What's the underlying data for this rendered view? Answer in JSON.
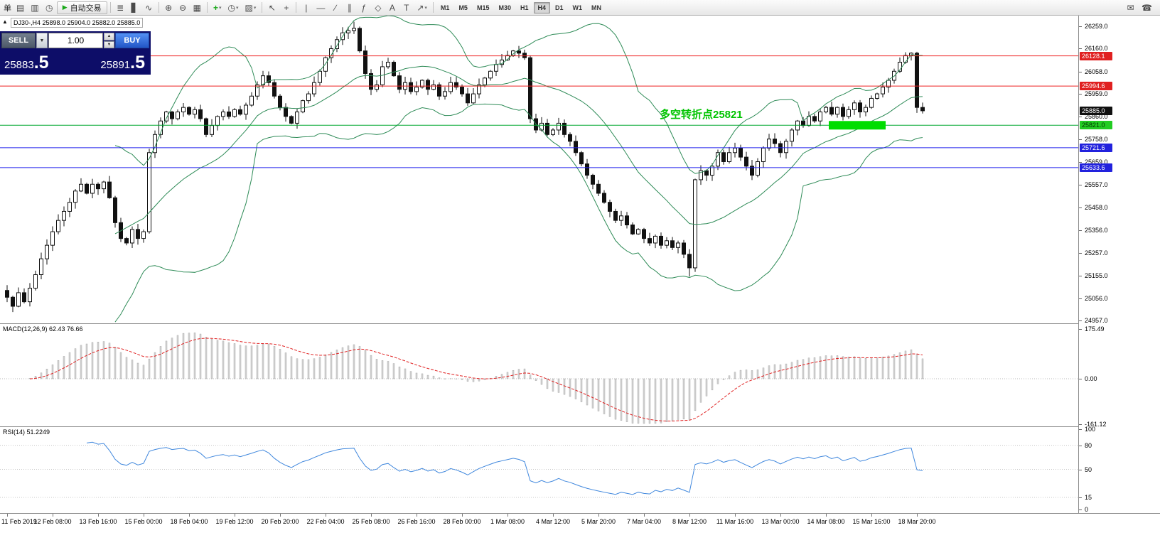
{
  "toolbar": {
    "left_text": "单",
    "autotrade_label": "自动交易",
    "timeframes": [
      "M1",
      "M5",
      "M15",
      "M30",
      "H1",
      "H4",
      "D1",
      "W1",
      "MN"
    ],
    "active_timeframe": "H4",
    "icons": {
      "files": "▤",
      "profile": "▥",
      "history": "◷",
      "play": "▶",
      "bars_chart": "≣",
      "candle_chart": "▋",
      "line_chart": "∿",
      "zoom_in": "⊕",
      "zoom_out": "⊖",
      "tile_windows": "▦",
      "add_indicator": "+",
      "periods": "◷",
      "templates": "▨",
      "cursor": "↖",
      "crosshair": "+",
      "vertical_line": "|",
      "horizontal_line": "—",
      "trendline": "∕",
      "channel": "∥",
      "fibonacci": "ƒ",
      "shapes": "◇",
      "text_tool": "A",
      "label_tool": "T",
      "arrows": "↗",
      "caret": "▾",
      "mail": "✉",
      "phone": "☎"
    }
  },
  "chart_header": {
    "symbol": "DJ30-,H4",
    "open": "25898.0",
    "high": "25904.0",
    "low": "25882.0",
    "close": "25885.0"
  },
  "trade_panel": {
    "sell_label": "SELL",
    "buy_label": "BUY",
    "volume": "1.00",
    "sell_price_main": "25883",
    "sell_price_pips": ".5",
    "buy_price_main": "25891",
    "buy_price_pips": ".5"
  },
  "annotation": {
    "text": "多空转折点25821",
    "color": "#00c400"
  },
  "price_axis": {
    "ticks": [
      "26259.0",
      "26160.0",
      "26058.0",
      "25959.0",
      "25860.0",
      "25758.0",
      "25659.0",
      "25557.0",
      "25458.0",
      "25356.0",
      "25257.0",
      "25155.0",
      "25056.0",
      "24957.0"
    ]
  },
  "hlines": [
    {
      "price": 26128.1,
      "label": "26128.1",
      "color": "#ee2222",
      "badge_bg": "#e02020",
      "badge_fg": "#ffffff",
      "line": true
    },
    {
      "price": 25994.6,
      "label": "25994.6",
      "color": "#ee2222",
      "badge_bg": "#e02020",
      "badge_fg": "#ffffff",
      "line": true
    },
    {
      "price": 25885.0,
      "label": "25885.0",
      "color": "#111111",
      "badge_bg": "#101010",
      "badge_fg": "#ffffff",
      "line": false
    },
    {
      "price": 25821.0,
      "label": "25821.0",
      "color": "#00a830",
      "badge_bg": "#22cc22",
      "badge_fg": "#003300",
      "line": true
    },
    {
      "price": 25721.6,
      "label": "25721.6",
      "color": "#2222ee",
      "badge_bg": "#2222dd",
      "badge_fg": "#ffffff",
      "line": true
    },
    {
      "price": 25633.6,
      "label": "25633.6",
      "color": "#2222ee",
      "badge_bg": "#2222dd",
      "badge_fg": "#ffffff",
      "line": true
    }
  ],
  "highlight_rect": {
    "from_index": 145,
    "to_index": 154,
    "price": 25821,
    "color": "#00dd00"
  },
  "macd": {
    "label": "MACD(12,26,9) 62.43 76.66",
    "scale_top": "175.49",
    "scale_zero": "0.00",
    "scale_bottom": "-161.12",
    "fast": 12,
    "slow": 26,
    "signal": 9
  },
  "rsi": {
    "label": "RSI(14) 51.2249",
    "period": 14,
    "levels": [
      "100",
      "80",
      "50",
      "15",
      "0"
    ],
    "dotted_levels": [
      80,
      50,
      15
    ]
  },
  "time_axis": {
    "labels": [
      {
        "index": 0,
        "text": "11 Feb 2019"
      },
      {
        "index": 8,
        "text": "12 Feb 08:00"
      },
      {
        "index": 16,
        "text": "13 Feb 16:00"
      },
      {
        "index": 24,
        "text": "15 Feb 00:00"
      },
      {
        "index": 32,
        "text": "18 Feb 04:00"
      },
      {
        "index": 40,
        "text": "19 Feb 12:00"
      },
      {
        "index": 48,
        "text": "20 Feb 20:00"
      },
      {
        "index": 56,
        "text": "22 Feb 04:00"
      },
      {
        "index": 64,
        "text": "25 Feb 08:00"
      },
      {
        "index": 72,
        "text": "26 Feb 16:00"
      },
      {
        "index": 80,
        "text": "28 Feb 00:00"
      },
      {
        "index": 88,
        "text": "1 Mar 08:00"
      },
      {
        "index": 96,
        "text": "4 Mar 12:00"
      },
      {
        "index": 104,
        "text": "5 Mar 20:00"
      },
      {
        "index": 112,
        "text": "7 Mar 04:00"
      },
      {
        "index": 120,
        "text": "8 Mar 12:00"
      },
      {
        "index": 128,
        "text": "11 Mar 16:00"
      },
      {
        "index": 136,
        "text": "13 Mar 00:00"
      },
      {
        "index": 144,
        "text": "14 Mar 08:00"
      },
      {
        "index": 152,
        "text": "15 Mar 16:00"
      },
      {
        "index": 160,
        "text": "18 Mar 20:00"
      }
    ]
  },
  "chart_data": {
    "type": "candlestick",
    "symbol": "DJ30-",
    "timeframe": "H4",
    "overlays": [
      "Bollinger Bands (20,2)"
    ],
    "ylim": [
      24945,
      26290
    ],
    "current_price": 25885.0,
    "closes": [
      25060,
      25020,
      25080,
      25040,
      25100,
      25160,
      25230,
      25290,
      25350,
      25400,
      25440,
      25480,
      25530,
      25560,
      25520,
      25560,
      25540,
      25570,
      25500,
      25390,
      25320,
      25300,
      25360,
      25320,
      25350,
      25700,
      25780,
      25840,
      25880,
      25850,
      25880,
      25900,
      25870,
      25890,
      25850,
      25780,
      25820,
      25860,
      25880,
      25860,
      25890,
      25870,
      25910,
      25950,
      26000,
      26040,
      26010,
      25950,
      25900,
      25860,
      25830,
      25880,
      25930,
      25960,
      26010,
      26060,
      26120,
      26160,
      26200,
      26230,
      26240,
      26250,
      26150,
      26050,
      25980,
      26000,
      26080,
      26100,
      26040,
      25980,
      26010,
      25970,
      25990,
      26020,
      25980,
      26000,
      25950,
      25970,
      26010,
      25990,
      25960,
      25920,
      25960,
      26000,
      26030,
      26060,
      26090,
      26110,
      26130,
      26150,
      26140,
      26120,
      25850,
      25800,
      25830,
      25780,
      25800,
      25830,
      25780,
      25750,
      25700,
      25650,
      25600,
      25560,
      25520,
      25480,
      25440,
      25400,
      25420,
      25380,
      25340,
      25360,
      25320,
      25300,
      25330,
      25290,
      25310,
      25280,
      25300,
      25250,
      25190,
      25580,
      25620,
      25600,
      25640,
      25700,
      25660,
      25700,
      25720,
      25680,
      25640,
      25600,
      25660,
      25720,
      25760,
      25740,
      25700,
      25750,
      25800,
      25840,
      25820,
      25860,
      25840,
      25880,
      25900,
      25870,
      25900,
      25860,
      25890,
      25920,
      25880,
      25900,
      25940,
      25960,
      25990,
      26020,
      26060,
      26100,
      26130,
      26140,
      25900,
      25885
    ]
  }
}
